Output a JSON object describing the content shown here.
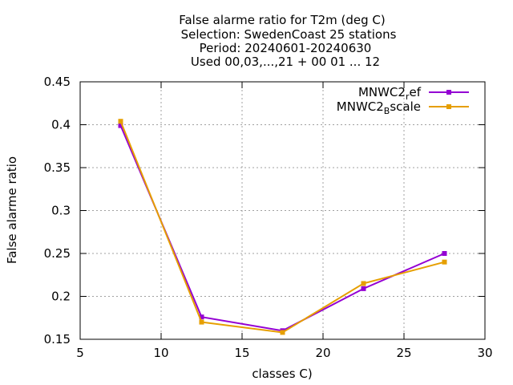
{
  "chart_data": {
    "type": "line",
    "title_lines": [
      "False alarme ratio  for T2m (deg C)",
      "Selection: SwedenCoast      25 stations",
      "Period: 20240601-20240630",
      "Used 00,03,...,21 + 00 01 ... 12"
    ],
    "xlabel": "classes C)",
    "ylabel": "False alarme ratio",
    "xlim": [
      5,
      30
    ],
    "ylim": [
      0.15,
      0.45
    ],
    "xticks": [
      5,
      10,
      15,
      20,
      25,
      30
    ],
    "xtick_labels": [
      "5",
      "10",
      "15",
      "20",
      "25",
      "30"
    ],
    "yticks": [
      0.15,
      0.2,
      0.25,
      0.3,
      0.35,
      0.4,
      0.45
    ],
    "ytick_labels": [
      "0.15",
      "0.2",
      "0.25",
      "0.3",
      "0.35",
      "0.4",
      "0.45"
    ],
    "grid": true,
    "legend_position": "top-right",
    "series": [
      {
        "name_main": "MNWC2",
        "name_sub": "r",
        "name_rest": "ef",
        "color": "#9400d3",
        "x": [
          7.5,
          12.5,
          17.5,
          22.5,
          27.5
        ],
        "y": [
          0.399,
          0.176,
          0.16,
          0.209,
          0.25
        ]
      },
      {
        "name_main": "MNWC2",
        "name_sub": "B",
        "name_rest": "scale",
        "color": "#e69f00",
        "x": [
          7.5,
          12.5,
          17.5,
          22.5,
          27.5
        ],
        "y": [
          0.404,
          0.17,
          0.158,
          0.215,
          0.24
        ]
      }
    ]
  }
}
